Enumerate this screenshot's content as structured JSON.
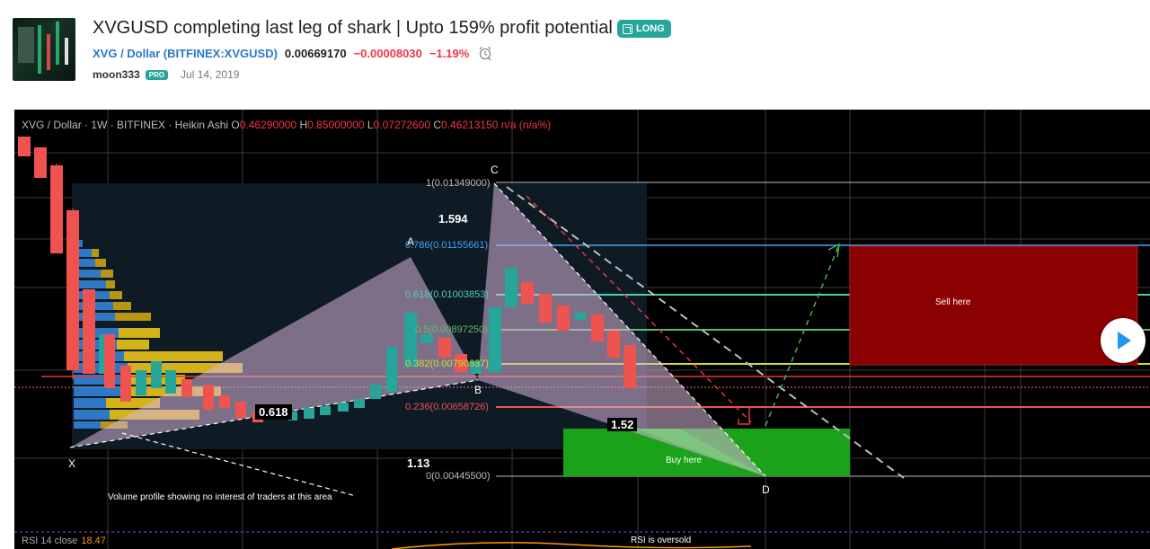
{
  "idea": {
    "title": "XVGUSD completing last leg of shark | Upto 159% profit potential",
    "badge": "LONG",
    "symbol_pair": "XVG / Dollar",
    "symbol_exchange": "BITFINEX:XVGUSD",
    "price": "0.00669170",
    "change": "−0.00008030",
    "change_pct": "−1.19%",
    "author": "moon333",
    "author_badge": "PRO",
    "date": "Jul 14, 2019"
  },
  "chart": {
    "legend_symbol": "XVG / Dollar · 1W · BITFINEX · Heikin Ashi",
    "ohlc": {
      "o_label": "O",
      "o": "0.46290000",
      "h_label": "H",
      "h": "0.85000000",
      "l_label": "L",
      "l": "0.07272600",
      "c_label": "C",
      "c": "0.46213150",
      "extra": "n/a (n/a%)"
    },
    "fib_levels": [
      {
        "label": "1(0.01349000)",
        "color": "#bdbdbd"
      },
      {
        "label": "0.786(0.01155661)",
        "color": "#42a5f5"
      },
      {
        "label": "0.618(0.01003853)",
        "color": "#4dd0b0"
      },
      {
        "label": "0.5(0.00897250)",
        "color": "#66bb6a"
      },
      {
        "label": "0.382(0.00790637)",
        "color": "#cddc39"
      },
      {
        "label": "0.236(0.00658726)",
        "color": "#ef5350"
      },
      {
        "label": "0(0.00445500)",
        "color": "#bdbdbd"
      }
    ],
    "pattern_points": {
      "x": "X",
      "a": "A",
      "b": "B",
      "c": "C",
      "d": "D"
    },
    "ratios": {
      "r1": "1.594",
      "r2": "0.618",
      "r3": "1.52",
      "r4": "1.13"
    },
    "zones": {
      "sell": "Sell here",
      "buy": "Buy here"
    },
    "volume_note": "Volume profile showing no interest of traders at this area",
    "rsi": {
      "label": "RSI 14 close",
      "value": "18.47",
      "note": "RSI is oversold"
    },
    "colors": {
      "up": "#26a69a",
      "down": "#ef5350",
      "sell_zone": "#8b0000",
      "buy_zone": "#1aa31a"
    }
  }
}
